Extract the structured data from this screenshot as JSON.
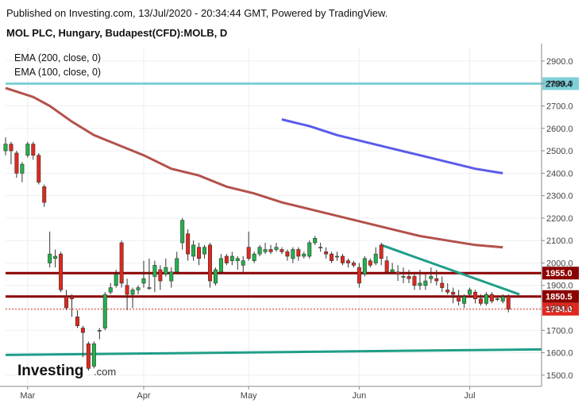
{
  "header": {
    "published": "Published on Investing.com, 13/Jul/2020 - 20:34:44 GMT, Powered by TradingView.",
    "instrument": "MOL PLC, Hungary, Budapest(CFD):MOLB, D"
  },
  "logo": {
    "brand": "Investing",
    "suffix": ".com"
  },
  "chart_data": {
    "type": "candlestick",
    "title": "",
    "ylim": [
      1450,
      2960
    ],
    "y_ticks": [
      1500,
      1600,
      1700,
      1800,
      1900,
      2000,
      2100,
      2200,
      2300,
      2400,
      2500,
      2600,
      2700,
      2800,
      2900
    ],
    "x_range": [
      0,
      97
    ],
    "x_ticks": [
      {
        "label": "Mar",
        "x": 4
      },
      {
        "label": "Apr",
        "x": 25
      },
      {
        "label": "May",
        "x": 44
      },
      {
        "label": "Jun",
        "x": 64
      },
      {
        "label": "Jul",
        "x": 84
      }
    ],
    "legend": [
      "EMA (200, close, 0)",
      "EMA (100, close, 0)"
    ],
    "colors": {
      "up": "#26a69a",
      "down": "#ef5350",
      "upFill": "#22b14c",
      "downFill": "#e0281e",
      "ema200": "#b3514b",
      "ema100": "#5b5bea",
      "level": "#8b0000",
      "support": "#1f9e89",
      "cyan": "#7ecfd8",
      "last": "#e0281e"
    },
    "candles": [
      [
        0,
        2500,
        2560,
        2480,
        2530
      ],
      [
        1,
        2530,
        2540,
        2440,
        2500
      ],
      [
        2,
        2490,
        2500,
        2380,
        2400
      ],
      [
        3,
        2400,
        2450,
        2360,
        2440
      ],
      [
        4,
        2480,
        2540,
        2470,
        2530
      ],
      [
        5,
        2530,
        2540,
        2460,
        2480
      ],
      [
        6,
        2480,
        2490,
        2350,
        2360
      ],
      [
        7,
        2340,
        2350,
        2250,
        2270
      ],
      [
        8,
        2000,
        2140,
        1980,
        2040
      ],
      [
        9,
        2020,
        2060,
        1980,
        2030
      ],
      [
        10,
        2040,
        2050,
        1870,
        1880
      ],
      [
        11,
        1850,
        1880,
        1790,
        1800
      ],
      [
        12,
        1850,
        1860,
        1760,
        1840
      ],
      [
        13,
        1760,
        1790,
        1710,
        1720
      ],
      [
        14,
        1710,
        1720,
        1580,
        1690
      ],
      [
        15,
        1640,
        1650,
        1520,
        1530
      ],
      [
        16,
        1540,
        1650,
        1530,
        1640
      ],
      [
        17,
        1700,
        1710,
        1660,
        1700
      ],
      [
        18,
        1710,
        1870,
        1700,
        1860
      ],
      [
        19,
        1870,
        1910,
        1860,
        1890
      ],
      [
        20,
        1900,
        1970,
        1890,
        1950
      ],
      [
        21,
        2090,
        2100,
        1890,
        1910
      ],
      [
        22,
        1900,
        1930,
        1790,
        1860
      ],
      [
        23,
        1860,
        1890,
        1800,
        1880
      ],
      [
        24,
        1880,
        1900,
        1860,
        1890
      ],
      [
        25,
        1910,
        2010,
        1890,
        1930
      ],
      [
        26,
        1890,
        2020,
        1880,
        1890
      ],
      [
        27,
        1940,
        2010,
        1870,
        1990
      ],
      [
        28,
        1970,
        1990,
        1880,
        1920
      ],
      [
        29,
        1950,
        2020,
        1940,
        1980
      ],
      [
        30,
        1920,
        1980,
        1890,
        1960
      ],
      [
        31,
        1960,
        2050,
        1950,
        2020
      ],
      [
        32,
        2090,
        2200,
        2060,
        2190
      ],
      [
        33,
        2130,
        2150,
        2010,
        2040
      ],
      [
        34,
        2030,
        2100,
        2010,
        2080
      ],
      [
        35,
        2070,
        2090,
        1990,
        2020
      ],
      [
        36,
        2040,
        2080,
        2020,
        2070
      ],
      [
        37,
        2080,
        2090,
        1890,
        1920
      ],
      [
        38,
        1910,
        1980,
        1900,
        1970
      ],
      [
        39,
        1960,
        2040,
        1950,
        2020
      ],
      [
        40,
        2030,
        2040,
        1990,
        2000
      ],
      [
        41,
        2010,
        2050,
        1990,
        2030
      ],
      [
        42,
        2010,
        2030,
        1970,
        2020
      ],
      [
        43,
        1990,
        2030,
        1960,
        2010
      ],
      [
        44,
        2070,
        2140,
        2010,
        2020
      ],
      [
        45,
        2010,
        2050,
        2000,
        2040
      ],
      [
        46,
        2040,
        2080,
        2030,
        2070
      ],
      [
        47,
        2050,
        2090,
        2040,
        2060
      ],
      [
        48,
        2060,
        2080,
        2040,
        2050
      ],
      [
        49,
        2060,
        2090,
        2050,
        2070
      ],
      [
        50,
        2060,
        2070,
        2040,
        2050
      ],
      [
        51,
        2050,
        2060,
        2010,
        2030
      ],
      [
        52,
        2020,
        2070,
        2000,
        2060
      ],
      [
        53,
        2060,
        2070,
        2010,
        2030
      ],
      [
        54,
        2030,
        2050,
        2020,
        2040
      ],
      [
        55,
        2030,
        2100,
        2020,
        2090
      ],
      [
        56,
        2090,
        2120,
        2080,
        2110
      ],
      [
        57,
        2070,
        2090,
        2050,
        2070
      ],
      [
        58,
        2050,
        2070,
        2020,
        2040
      ],
      [
        59,
        2040,
        2050,
        2000,
        2010
      ],
      [
        60,
        2030,
        2050,
        2010,
        2030
      ],
      [
        61,
        2030,
        2040,
        1990,
        2000
      ],
      [
        62,
        2010,
        2020,
        1980,
        2000
      ],
      [
        63,
        2000,
        2010,
        1980,
        1990
      ],
      [
        64,
        1980,
        2000,
        1890,
        1910
      ],
      [
        65,
        1950,
        2030,
        1940,
        2020
      ],
      [
        66,
        2010,
        2020,
        1980,
        1990
      ],
      [
        67,
        2000,
        2070,
        1990,
        2040
      ],
      [
        68,
        2080,
        2090,
        1990,
        2020
      ],
      [
        69,
        2010,
        2030,
        1950,
        1960
      ],
      [
        70,
        1960,
        2000,
        1950,
        1970
      ],
      [
        71,
        1960,
        1990,
        1920,
        1950
      ],
      [
        72,
        1940,
        1980,
        1910,
        1940
      ],
      [
        73,
        1940,
        1970,
        1910,
        1930
      ],
      [
        74,
        1940,
        1950,
        1880,
        1900
      ],
      [
        75,
        1900,
        1970,
        1880,
        1910
      ],
      [
        76,
        1900,
        1950,
        1880,
        1920
      ],
      [
        77,
        1930,
        1980,
        1910,
        1940
      ],
      [
        78,
        1930,
        1970,
        1900,
        1920
      ],
      [
        79,
        1910,
        1940,
        1870,
        1890
      ],
      [
        80,
        1880,
        1910,
        1860,
        1870
      ],
      [
        81,
        1870,
        1890,
        1820,
        1860
      ],
      [
        82,
        1850,
        1880,
        1810,
        1830
      ],
      [
        83,
        1820,
        1860,
        1800,
        1850
      ],
      [
        84,
        1860,
        1890,
        1850,
        1880
      ],
      [
        85,
        1870,
        1880,
        1820,
        1840
      ],
      [
        86,
        1840,
        1860,
        1810,
        1820
      ],
      [
        87,
        1820,
        1870,
        1810,
        1860
      ],
      [
        88,
        1860,
        1870,
        1820,
        1830
      ],
      [
        89,
        1840,
        1850,
        1830,
        1840
      ],
      [
        90,
        1830,
        1860,
        1820,
        1850
      ],
      [
        91,
        1850,
        1860,
        1780,
        1794
      ]
    ],
    "ema200": [
      [
        0,
        2780
      ],
      [
        5,
        2740
      ],
      [
        8,
        2700
      ],
      [
        12,
        2630
      ],
      [
        16,
        2570
      ],
      [
        20,
        2530
      ],
      [
        25,
        2480
      ],
      [
        30,
        2420
      ],
      [
        35,
        2390
      ],
      [
        40,
        2340
      ],
      [
        45,
        2310
      ],
      [
        50,
        2270
      ],
      [
        55,
        2240
      ],
      [
        60,
        2210
      ],
      [
        65,
        2180
      ],
      [
        70,
        2150
      ],
      [
        75,
        2120
      ],
      [
        80,
        2100
      ],
      [
        85,
        2080
      ],
      [
        90,
        2070
      ]
    ],
    "ema100": [
      [
        50,
        2640
      ],
      [
        55,
        2610
      ],
      [
        60,
        2570
      ],
      [
        65,
        2540
      ],
      [
        70,
        2510
      ],
      [
        75,
        2480
      ],
      [
        80,
        2450
      ],
      [
        85,
        2420
      ],
      [
        90,
        2400
      ]
    ],
    "levels": [
      {
        "value": 2799.4,
        "label": "2799.4",
        "role": "resistance-cyan"
      },
      {
        "value": 1955.0,
        "label": "1955.0",
        "role": "resistance"
      },
      {
        "value": 1850.5,
        "label": "1850.5",
        "role": "support"
      }
    ],
    "last_price": {
      "value": 1794.0,
      "label": "1794.0"
    },
    "trend_down": [
      [
        68,
        2080
      ],
      [
        93,
        1860
      ]
    ],
    "trend_up": [
      [
        0,
        1590
      ],
      [
        97,
        1615
      ]
    ]
  }
}
